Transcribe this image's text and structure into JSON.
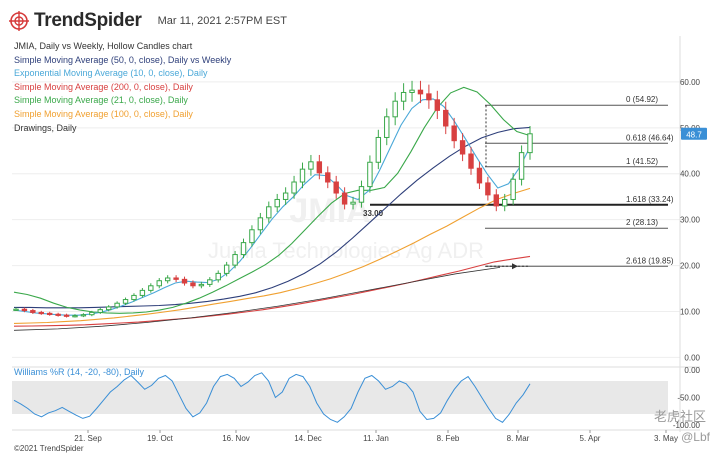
{
  "header": {
    "brand": "TrendSpider",
    "timestamp": "Mar 11, 2021 2:57PM EST"
  },
  "legend": [
    {
      "text": "JMIA, Daily vs Weekly, Hollow Candles chart",
      "color": "#333333"
    },
    {
      "text": "Simple Moving Average (50, 0, close), Daily vs Weekly",
      "color": "#2e3f7a"
    },
    {
      "text": "Exponential Moving Average (10, 0, close), Daily",
      "color": "#4aa8d8"
    },
    {
      "text": "Simple Moving Average (200, 0, close), Daily",
      "color": "#d84040"
    },
    {
      "text": "Simple Moving Average (21, 0, close), Daily",
      "color": "#3aa84a"
    },
    {
      "text": "Simple Moving Average (100, 0, close), Daily",
      "color": "#f0a030"
    },
    {
      "text": "Drawings, Daily",
      "color": "#333333"
    }
  ],
  "watermark": {
    "ticker": "JMIA",
    "company": "Jumia Technologies Ag ADR"
  },
  "williams": {
    "label": "Williams %R (14, -20, -80), Daily",
    "ticks": [
      "0.00",
      "-50.00",
      "-100.00"
    ]
  },
  "footer": {
    "copyright": "©2021 TrendSpider",
    "cn_watermark": "老虎社区",
    "cn_user": "@Lbf"
  },
  "chart_data": {
    "type": "line",
    "title": "JMIA, Daily vs Weekly, Hollow Candles chart",
    "x_ticks": [
      "21. Sep",
      "19. Oct",
      "16. Nov",
      "14. Dec",
      "11. Jan",
      "8. Feb",
      "8. Mar",
      "5. Apr",
      "3. May"
    ],
    "y_ticks": [
      0,
      10,
      20,
      30,
      40,
      50,
      60
    ],
    "y_tick_labels": [
      "0.00",
      "10.00",
      "20.00",
      "30.00",
      "40.00",
      "50.00",
      "60.00"
    ],
    "ylim": [
      -1,
      70
    ],
    "last_price_label": "48.7",
    "last_price": 48.7,
    "price_series": [
      10.5,
      10.2,
      9.8,
      9.6,
      9.4,
      9.2,
      9.0,
      9.1,
      9.3,
      9.8,
      10.4,
      11.0,
      11.8,
      12.6,
      13.5,
      14.6,
      15.6,
      16.7,
      17.3,
      17.0,
      16.2,
      15.6,
      15.9,
      16.9,
      18.3,
      20.1,
      22.4,
      25.0,
      27.8,
      30.4,
      32.8,
      34.4,
      35.8,
      38.2,
      41.0,
      42.6,
      40.2,
      38.2,
      35.8,
      33.4,
      33.8,
      37.2,
      42.5,
      47.9,
      52.4,
      55.8,
      57.7,
      58.2,
      57.4,
      56.1,
      53.8,
      50.4,
      47.2,
      44.3,
      41.2,
      38.0,
      35.4,
      33.0,
      34.4,
      38.8,
      44.6,
      48.7
    ],
    "series": [
      {
        "name": "SMA 50",
        "color": "#2e3f7a",
        "values": [
          10.9,
          10.9,
          10.8,
          10.8,
          10.8,
          10.9,
          11.0,
          11.1,
          11.2,
          11.3,
          11.5,
          11.8,
          12.2,
          12.7,
          13.3,
          14.1,
          15.2,
          16.6,
          18.3,
          20.4,
          23.0,
          26.0,
          29.2,
          32.4,
          35.6,
          38.6,
          41.3,
          43.8,
          46.0,
          47.8,
          49.0,
          49.8,
          50.1
        ]
      },
      {
        "name": "SMA 21",
        "color": "#3aa84a",
        "values": [
          14.2,
          13.7,
          12.9,
          11.8,
          10.9,
          10.3,
          9.9,
          9.7,
          9.6,
          9.7,
          9.9,
          10.3,
          10.9,
          11.8,
          12.9,
          14.2,
          15.6,
          17.1,
          18.6,
          20.2,
          22.2,
          24.8,
          27.8,
          30.8,
          33.6,
          35.7,
          36.4,
          36.4,
          37.0,
          40.1,
          44.8,
          50.0,
          54.4,
          57.6,
          58.8,
          57.8,
          55.1,
          51.8,
          49.2,
          48.3
        ]
      },
      {
        "name": "SMA 100",
        "color": "#f0a030",
        "values": [
          7.4,
          7.5,
          7.6,
          7.8,
          8.0,
          8.3,
          8.6,
          9.0,
          9.4,
          9.9,
          10.4,
          11.0,
          11.6,
          12.2,
          12.8,
          13.4,
          14.1,
          15.0,
          16.0,
          17.1,
          18.4,
          19.8,
          21.4,
          23.1,
          24.9,
          26.8,
          28.6,
          30.6,
          32.6,
          34.4,
          35.7,
          36.8
        ]
      },
      {
        "name": "SMA 200",
        "color": "#d84040",
        "values": [
          6.8,
          6.85,
          6.9,
          7.0,
          7.1,
          7.3,
          7.5,
          7.7,
          8.0,
          8.3,
          8.6,
          9.0,
          9.4,
          9.9,
          10.4,
          11.0,
          11.6,
          12.3,
          13.0,
          13.7,
          14.5,
          15.3,
          16.1,
          17.0,
          17.9,
          18.8,
          19.8,
          20.8,
          21.4,
          22.0
        ]
      },
      {
        "name": "EMA 10",
        "color": "#4aa8d8",
        "values": [
          10.3,
          10.0,
          9.7,
          9.5,
          9.3,
          9.2,
          9.2,
          9.4,
          9.8,
          10.4,
          11.2,
          12.1,
          13.1,
          14.1,
          15.2,
          16.2,
          16.6,
          16.4,
          16.3,
          17.0,
          18.6,
          20.9,
          23.8,
          27.0,
          30.1,
          32.8,
          35.0,
          37.7,
          39.8,
          39.6,
          37.6,
          35.2,
          34.4,
          36.3,
          40.7,
          45.7,
          50.6,
          54.2,
          56.1,
          56.3,
          54.6,
          51.3,
          47.6,
          43.7,
          40.0,
          36.9,
          37.8,
          41.3,
          45.8
        ]
      }
    ],
    "fibonacci_levels": [
      {
        "label": "0 (54.92)",
        "value": 54.92
      },
      {
        "label": "0.618 (46.64)",
        "value": 46.64
      },
      {
        "label": "1 (41.52)",
        "value": 41.52
      },
      {
        "label": "1.618 (33.24)",
        "value": 33.24
      },
      {
        "label": "2 (28.13)",
        "value": 28.13
      },
      {
        "label": "2.618 (19.85)",
        "value": 19.85
      }
    ],
    "support_line": {
      "label": "33.00",
      "value": 33.0
    },
    "williams_r": {
      "label": "Williams %R (14, -20, -80), Daily",
      "ylim": [
        -100,
        0
      ],
      "zone": [
        -20,
        -80
      ],
      "values": [
        -55,
        -62,
        -70,
        -80,
        -85,
        -78,
        -74,
        -68,
        -75,
        -82,
        -88,
        -84,
        -70,
        -55,
        -40,
        -30,
        -18,
        -10,
        -22,
        -35,
        -28,
        -15,
        -10,
        -20,
        -45,
        -70,
        -85,
        -78,
        -60,
        -30,
        -12,
        -8,
        -15,
        -30,
        -22,
        -10,
        -5,
        -20,
        -50,
        -40,
        -15,
        -8,
        -12,
        -30,
        -60,
        -80,
        -90,
        -95,
        -85,
        -70,
        -40,
        -15,
        -10,
        -20,
        -35,
        -30,
        -20,
        -25,
        -40,
        -75,
        -90,
        -88,
        -78,
        -55,
        -35,
        -20,
        -12,
        -30,
        -50,
        -70,
        -88,
        -95,
        -80,
        -60,
        -45,
        -25
      ]
    }
  }
}
